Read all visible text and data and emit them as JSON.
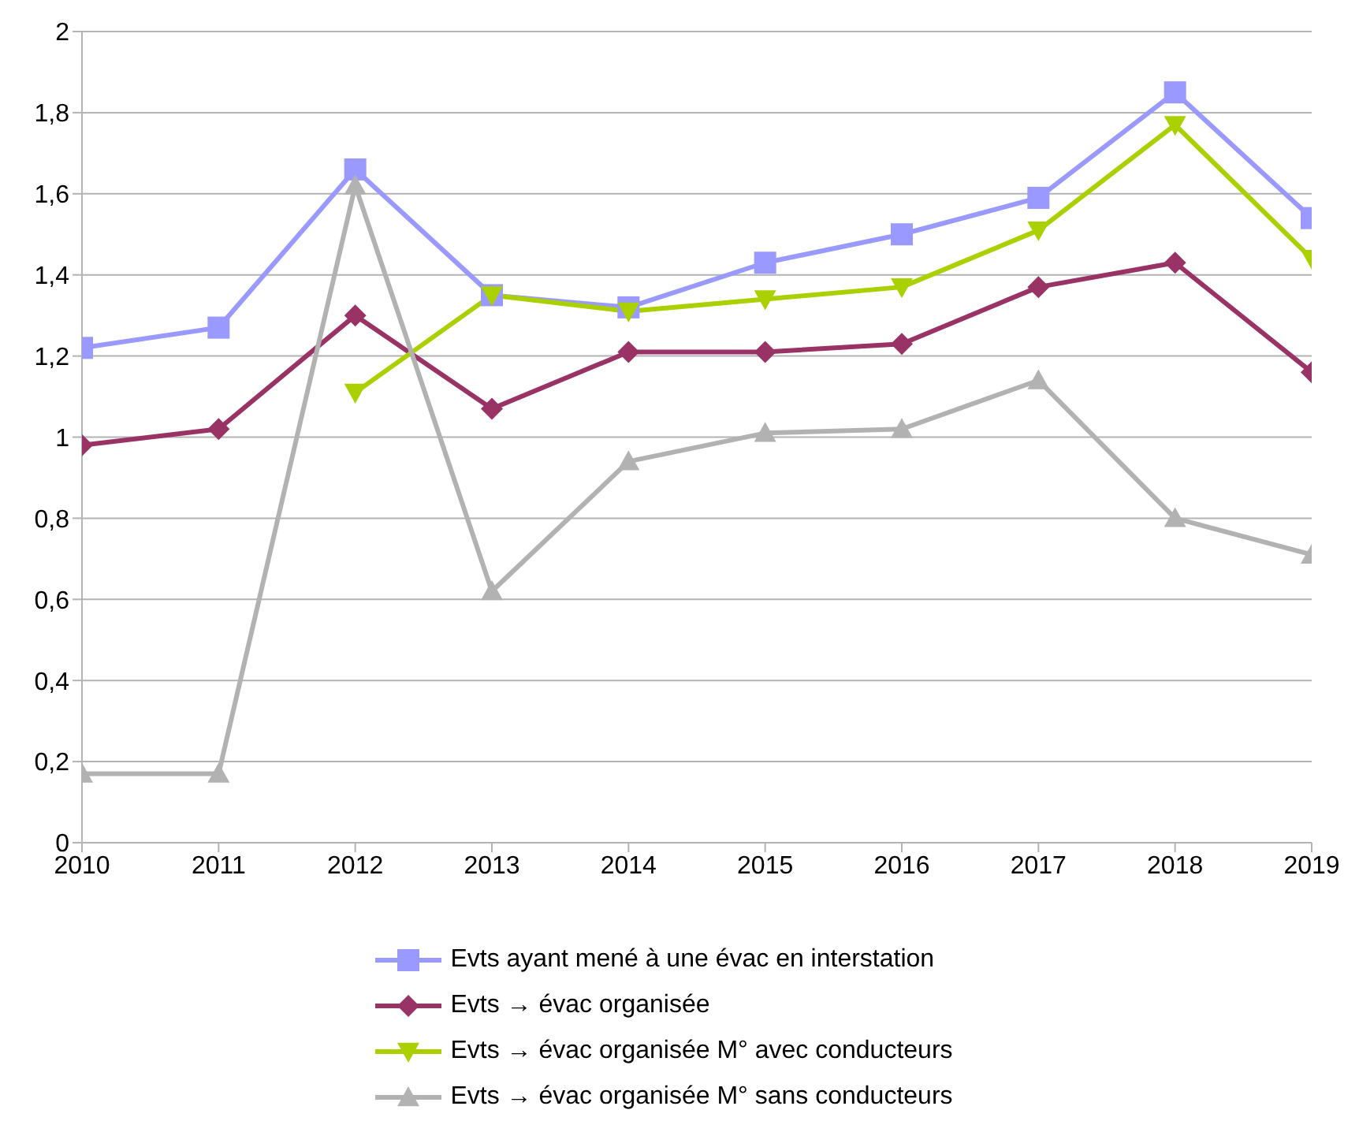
{
  "chart_data": {
    "type": "line",
    "x": [
      2010,
      2011,
      2012,
      2013,
      2014,
      2015,
      2016,
      2017,
      2018,
      2019
    ],
    "xlim": [
      2010,
      2019
    ],
    "xticks": [
      2010,
      2011,
      2012,
      2013,
      2014,
      2015,
      2016,
      2017,
      2018,
      2019
    ],
    "ylim": [
      0,
      2
    ],
    "yticks": [
      0,
      {
        "value": 0.2,
        "label": "0,2"
      },
      {
        "value": 0.4,
        "label": "0,4"
      },
      {
        "value": 0.6,
        "label": "0,6"
      },
      {
        "value": 0.8,
        "label": "0,8"
      },
      1,
      {
        "value": 1.2,
        "label": "1,2"
      },
      {
        "value": 1.4,
        "label": "1,4"
      },
      {
        "value": 1.6,
        "label": "1,6"
      },
      {
        "value": 1.8,
        "label": "1,8"
      },
      2
    ],
    "grid": "y",
    "legend": "bottom",
    "line_style": "solid",
    "series": [
      {
        "name": "Evts ayant mené à une évac en interstation",
        "color": "#9999ff",
        "marker": "square",
        "values": [
          1.22,
          1.27,
          1.66,
          1.35,
          1.32,
          1.43,
          1.5,
          1.59,
          1.85,
          1.54
        ]
      },
      {
        "name": "Evts → évac organisée",
        "color": "#993366",
        "marker": "diamond",
        "values": [
          0.98,
          1.02,
          1.3,
          1.07,
          1.21,
          1.21,
          1.23,
          1.37,
          1.43,
          1.16
        ]
      },
      {
        "name": "Evts → évac organisée M° avec conducteurs",
        "color": "#aad000",
        "marker": "triangle-down",
        "values": [
          null,
          null,
          1.11,
          1.35,
          1.31,
          1.34,
          1.37,
          1.51,
          1.77,
          1.44
        ]
      },
      {
        "name": "Evts → évac organisée M° sans conducteurs",
        "color": "#b2b2b2",
        "marker": "triangle",
        "values": [
          0.17,
          0.17,
          1.62,
          0.62,
          0.94,
          1.01,
          1.02,
          1.14,
          0.8,
          0.71
        ]
      }
    ]
  }
}
